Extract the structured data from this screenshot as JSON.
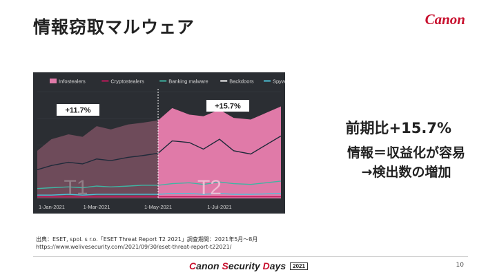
{
  "slide": {
    "title": "情報窃取マルウェア",
    "logo_text": "Canon",
    "callout_line1": "前期比+15.7%",
    "callout_line2": "情報＝収益化が容易",
    "callout_line3": "→検出数の増加",
    "source_line1": "出典：ESET, spol. s r.o.「ESET Threat Report T2 2021」調査期間：2021年5月～8月",
    "source_line2": "https://www.welivesecurity.com/2021/09/30/eset-threat-report-t22021/",
    "footer_canon": "C",
    "footer_anon": "anon ",
    "footer_s": "S",
    "footer_ecurity": "ecurity ",
    "footer_d": "D",
    "footer_ays": "ays",
    "footer_year": "2021",
    "page_number": "10"
  },
  "chart_data": {
    "type": "area",
    "legend": [
      "Infostealers",
      "Cryptostealers",
      "Banking malware",
      "Backdoors",
      "Spyware"
    ],
    "x_tick_labels": [
      "1-Jan-2021",
      "1-Mar-2021",
      "1-May-2021",
      "1-Jul-2021"
    ],
    "period_labels": [
      "T1",
      "T2"
    ],
    "annotations": [
      "+11.7%",
      "+15.7%"
    ],
    "colors": {
      "infostealers_t1": "#6e4b5a",
      "infostealers_t2": "#e07aa8",
      "cryptostealers": "#c2185b",
      "banking": "#3fb5a3",
      "backdoors": "#1f2a3a",
      "spyware": "#4cc3d9",
      "background": "#2b2e33"
    },
    "x": [
      "2021-01-01",
      "2021-01-15",
      "2021-02-01",
      "2021-02-15",
      "2021-03-01",
      "2021-03-15",
      "2021-04-01",
      "2021-04-15",
      "2021-05-01",
      "2021-05-15",
      "2021-06-01",
      "2021-06-15",
      "2021-07-01",
      "2021-07-15",
      "2021-08-01",
      "2021-08-31"
    ],
    "series": [
      {
        "name": "Infostealers",
        "values": [
          58,
          72,
          78,
          75,
          88,
          84,
          90,
          92,
          95,
          110,
          102,
          100,
          108,
          98,
          96,
          112
        ]
      },
      {
        "name": "Backdoors",
        "values": [
          35,
          40,
          44,
          42,
          48,
          46,
          50,
          52,
          55,
          70,
          68,
          60,
          72,
          58,
          54,
          76
        ]
      },
      {
        "name": "Banking malware",
        "values": [
          12,
          13,
          14,
          13,
          15,
          14,
          15,
          16,
          16,
          18,
          19,
          17,
          20,
          18,
          17,
          21
        ]
      },
      {
        "name": "Spyware",
        "values": [
          4,
          4,
          5,
          4,
          5,
          5,
          5,
          5,
          5,
          6,
          6,
          5,
          6,
          5,
          5,
          6
        ]
      },
      {
        "name": "Cryptostealers",
        "values": [
          2,
          2,
          2,
          2,
          2,
          2,
          2,
          2,
          2,
          2,
          2,
          2,
          2,
          2,
          2,
          2
        ]
      }
    ],
    "ylim": [
      0,
      130
    ],
    "split_date": "2021-05-01"
  }
}
